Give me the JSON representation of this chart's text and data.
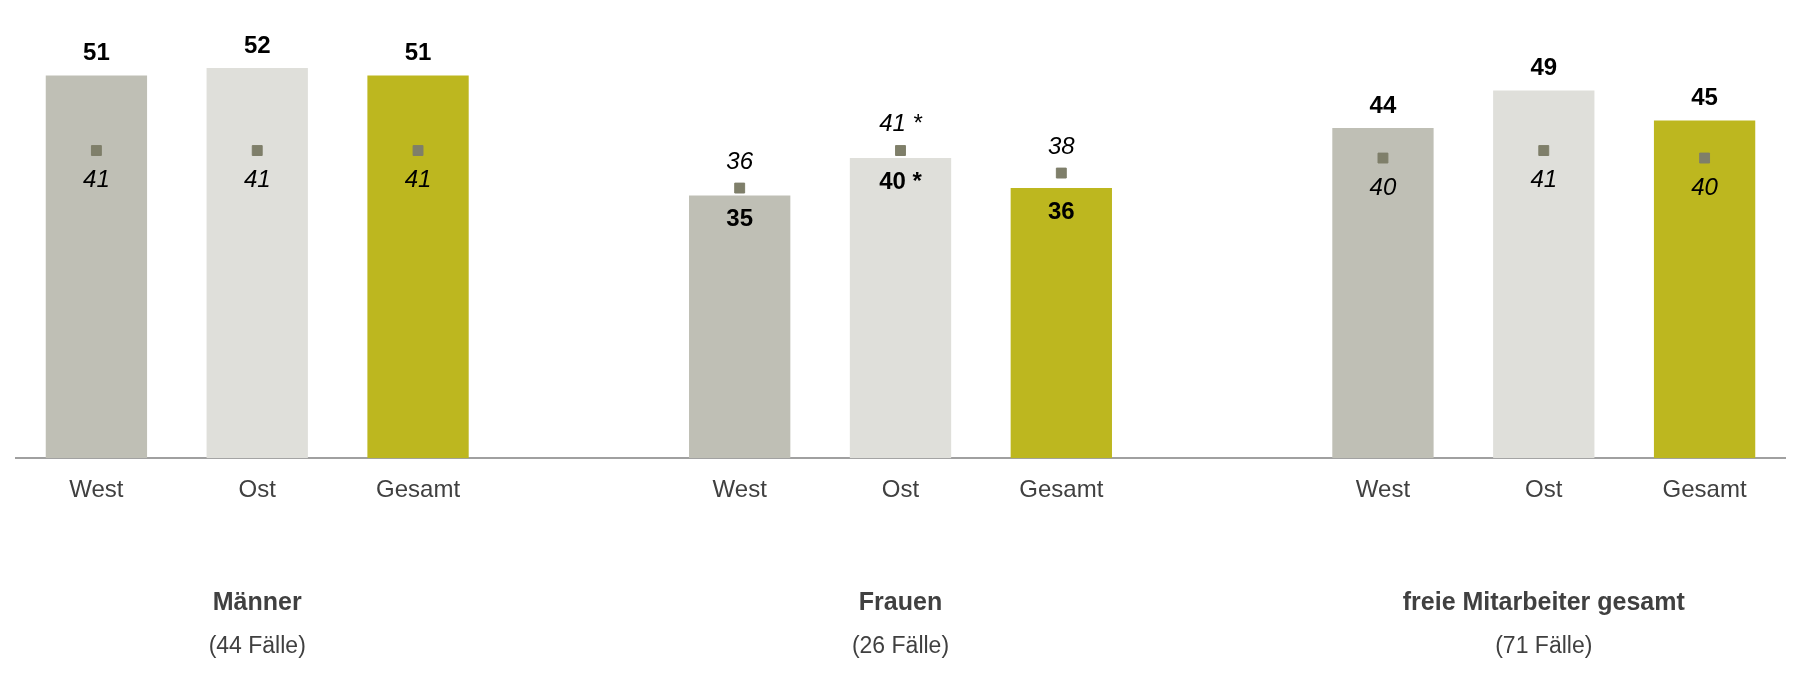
{
  "chart_data": {
    "type": "bar",
    "categories": [
      "West",
      "Ost",
      "Gesamt",
      null,
      "West",
      "Ost",
      "Gesamt",
      null,
      "West",
      "Ost",
      "Gesamt"
    ],
    "series": [
      {
        "colors": [
          "#bfbfb5",
          "#dfdfda",
          "#bdb71f",
          null,
          "#bfbfb5",
          "#dfdfda",
          "#bdb71f",
          null,
          "#bfbfb5",
          "#dfdfda",
          "#bdb71f"
        ],
        "values": [
          51,
          52,
          51,
          null,
          35,
          40,
          36,
          null,
          44,
          49,
          45
        ],
        "value_labels": [
          "51",
          "52",
          "51",
          null,
          "35",
          "40 *",
          "36",
          null,
          "44",
          "49",
          "45"
        ]
      },
      {
        "type": "scatter",
        "color": "#7f7f6a",
        "marker": "square",
        "values": [
          41,
          41,
          41,
          null,
          36,
          41,
          38,
          null,
          40,
          41,
          40
        ],
        "value_labels": [
          "41",
          "41",
          "41",
          null,
          "36",
          "41 *",
          "38",
          null,
          "40",
          "41",
          "40"
        ]
      }
    ],
    "ylim": [
      0,
      52
    ],
    "tick_labels": "x",
    "data_labels": true,
    "legend": false,
    "grid": false,
    "annotations": [
      "Männer",
      "(44 Fälle)",
      "Frauen",
      "(26 Fälle)",
      "freie Mitarbeiter gesamt",
      "(71 Fälle)"
    ]
  }
}
